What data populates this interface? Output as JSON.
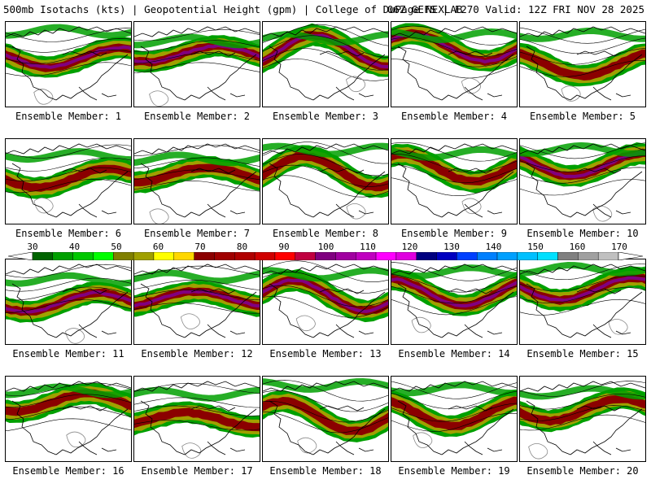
{
  "header": {
    "title_left": "500mb Isotachs (kts) | Geopotential Height (gpm) | College of DuPage NEXLAB",
    "title_right": "06Z GEFS | F270 Valid: 12Z FRI NOV 28 2025"
  },
  "members": [
    {
      "label": "Ensemble Member: 1"
    },
    {
      "label": "Ensemble Member: 2"
    },
    {
      "label": "Ensemble Member: 3"
    },
    {
      "label": "Ensemble Member: 4"
    },
    {
      "label": "Ensemble Member: 5"
    },
    {
      "label": "Ensemble Member: 6"
    },
    {
      "label": "Ensemble Member: 7"
    },
    {
      "label": "Ensemble Member: 8"
    },
    {
      "label": "Ensemble Member: 9"
    },
    {
      "label": "Ensemble Member: 10"
    },
    {
      "label": "Ensemble Member: 11"
    },
    {
      "label": "Ensemble Member: 12"
    },
    {
      "label": "Ensemble Member: 13"
    },
    {
      "label": "Ensemble Member: 14"
    },
    {
      "label": "Ensemble Member: 15"
    },
    {
      "label": "Ensemble Member: 16"
    },
    {
      "label": "Ensemble Member: 17"
    },
    {
      "label": "Ensemble Member: 18"
    },
    {
      "label": "Ensemble Member: 19"
    },
    {
      "label": "Ensemble Member: 20"
    }
  ],
  "colorbar": {
    "ticks": [
      "30",
      "40",
      "50",
      "60",
      "70",
      "80",
      "90",
      "100",
      "110",
      "120",
      "130",
      "140",
      "150",
      "160",
      "170"
    ],
    "colors": [
      "#006400",
      "#00a000",
      "#00c800",
      "#00ff00",
      "#808000",
      "#a0a000",
      "#ffff00",
      "#ffd700",
      "#8b0000",
      "#a00000",
      "#b00000",
      "#d00000",
      "#ff0000",
      "#c00040",
      "#800080",
      "#a000a0",
      "#c000c0",
      "#ff00ff",
      "#e000e0",
      "#000080",
      "#0000c0",
      "#0040ff",
      "#0080ff",
      "#00a0ff",
      "#00c0ff",
      "#00e0ff",
      "#808080",
      "#a0a0a0",
      "#c0c0c0"
    ],
    "units": "kts"
  },
  "colors": {
    "low_speed": "#00a000",
    "mid_speed": "#a0a000",
    "high_speed": "#8b0000",
    "max_speed": "#800080",
    "coast": "#000000",
    "height_contour": "#888888"
  }
}
